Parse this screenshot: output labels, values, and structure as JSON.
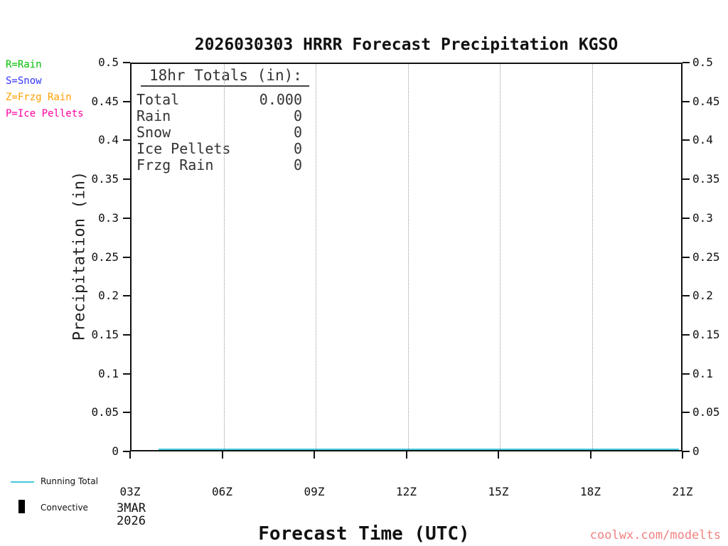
{
  "title": "2026030303 HRRR Forecast Precipitation KGSO",
  "legend": {
    "items": [
      {
        "id": "rain",
        "label": "R=Rain",
        "color": "#00c000"
      },
      {
        "id": "snow",
        "label": "S=Snow",
        "color": "#3333ff"
      },
      {
        "id": "frzg-rain",
        "label": "Z=Frzg Rain",
        "color": "#ff9f00"
      },
      {
        "id": "ice-pellets",
        "label": "P=Ice Pellets",
        "color": "#ff00a0"
      }
    ]
  },
  "stats": {
    "heading": "18hr Totals (in):",
    "rows": [
      {
        "label": "Total",
        "value": "0.000"
      },
      {
        "label": "Rain",
        "value": "0"
      },
      {
        "label": "Snow",
        "value": "0"
      },
      {
        "label": "Ice Pellets",
        "value": "0"
      },
      {
        "label": "Frzg Rain",
        "value": "0"
      }
    ]
  },
  "axes": {
    "ylabel": "Precipitation (in)",
    "xlabel": "Forecast Time (UTC)",
    "date_line1": "3MAR",
    "date_line2": "2026"
  },
  "bottom_legend": {
    "running_total": {
      "label": "Running Total",
      "color": "#45c8dd"
    },
    "convective": {
      "label": "Convective",
      "color": "#000000"
    }
  },
  "watermark": {
    "text": "coolwx.com/modelts",
    "color": "#f08080"
  },
  "chart_data": {
    "type": "line",
    "title": "2026030303 HRRR Forecast Precipitation KGSO",
    "xlabel": "Forecast Time (UTC)",
    "ylabel": "Precipitation (in)",
    "x": [
      "03Z",
      "06Z",
      "09Z",
      "12Z",
      "15Z",
      "18Z",
      "21Z"
    ],
    "start_date": "3MAR 2026",
    "yticks": [
      0,
      0.05,
      0.1,
      0.15,
      0.2,
      0.25,
      0.3,
      0.35,
      0.4,
      0.45,
      0.5
    ],
    "ytick_labels": [
      "0",
      "0.05",
      "0.1",
      "0.15",
      "0.2",
      "0.25",
      "0.3",
      "0.35",
      "0.4",
      "0.45",
      "0.5"
    ],
    "ylim": [
      0,
      0.5
    ],
    "grid": "vertical-dotted-interior-ticks",
    "legend_position": "bottom-left",
    "series": [
      {
        "name": "Running Total",
        "color": "#45c8dd",
        "values": [
          0,
          0,
          0,
          0,
          0,
          0,
          0
        ]
      },
      {
        "name": "Convective",
        "color": "#000000",
        "values": [
          0,
          0,
          0,
          0,
          0,
          0,
          0
        ]
      }
    ],
    "totals_18hr_in": {
      "total": 0.0,
      "rain": 0,
      "snow": 0,
      "ice_pellets": 0,
      "frzg_rain": 0
    }
  }
}
